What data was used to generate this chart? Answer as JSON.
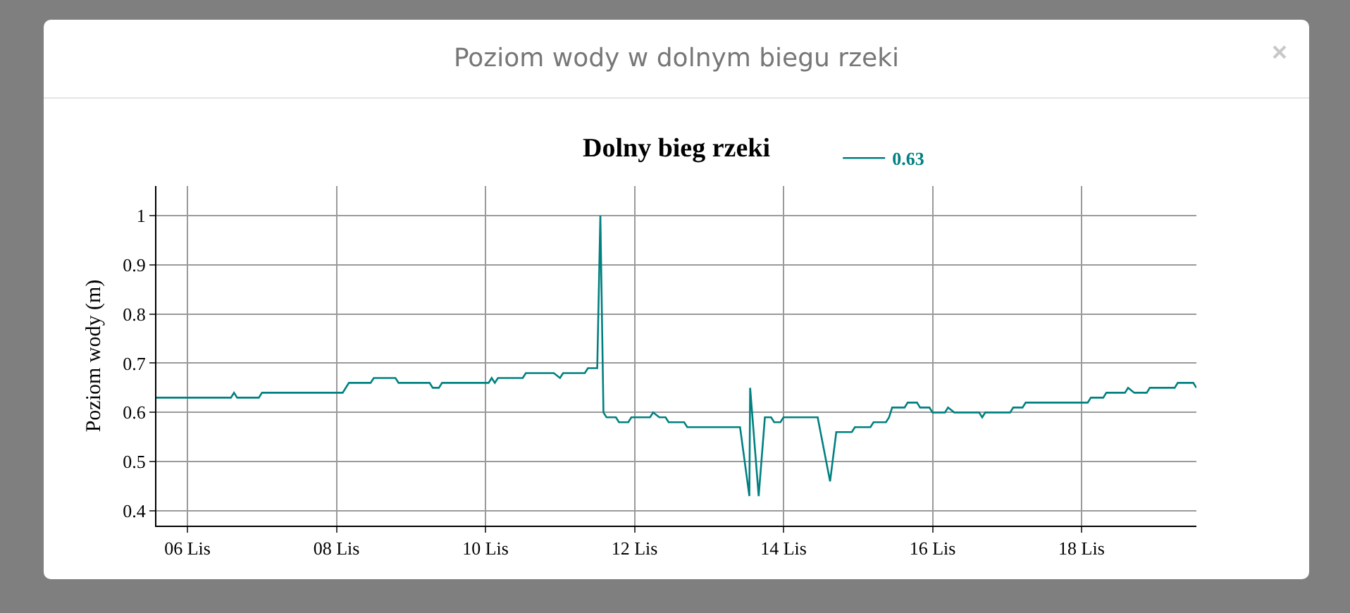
{
  "chart_data": {
    "type": "line",
    "title": "Poziom wody w dolnym biegu rzeki",
    "subtitle": "Dolny bieg rzeki",
    "ylabel": "Poziom wody (m)",
    "x": [
      "--11-05T14:00",
      "--11-06T14:00",
      "--11-06T15:00",
      "--11-06T16:00",
      "--11-06T23:00",
      "--11-07T00:00",
      "--11-08T02:00",
      "--11-08T04:00",
      "--11-08T11:00",
      "--11-08T12:00",
      "--11-08T19:00",
      "--11-08T20:00",
      "--11-09T06:00",
      "--11-09T07:00",
      "--11-09T09:00",
      "--11-09T10:00",
      "--11-10T01:00",
      "--11-10T02:00",
      "--11-10T03:00",
      "--11-10T04:00",
      "--11-10T12:00",
      "--11-10T13:00",
      "--11-10T22:00",
      "--11-11T00:00",
      "--11-11T01:00",
      "--11-11T08:00",
      "--11-11T09:00",
      "--11-11T12:00",
      "--11-11T13:00",
      "--11-11T14:00",
      "--11-11T15:00",
      "--11-11T18:00",
      "--11-11T19:00",
      "--11-11T22:00",
      "--11-11T23:00",
      "--11-12T05:00",
      "--11-12T06:00",
      "--11-12T08:00",
      "--11-12T10:00",
      "--11-12T11:00",
      "--11-12T16:00",
      "--11-12T17:00",
      "--11-13T10:00",
      "--11-13T13:00",
      "--11-13T13:15",
      "--11-13T16:00",
      "--11-13T18:00",
      "--11-13T20:00",
      "--11-13T21:00",
      "--11-13T23:00",
      "--11-14T00:00",
      "--11-14T11:00",
      "--11-14T15:00",
      "--11-14T17:00",
      "--11-14T22:00",
      "--11-14T23:00",
      "--11-15T04:00",
      "--11-15T05:00",
      "--11-15T09:00",
      "--11-15T10:00",
      "--11-15T11:00",
      "--11-15T15:00",
      "--11-15T16:00",
      "--11-15T19:00",
      "--11-15T20:00",
      "--11-15T23:00",
      "--11-16T00:00",
      "--11-16T04:00",
      "--11-16T05:00",
      "--11-16T07:00",
      "--11-16T15:00",
      "--11-16T16:00",
      "--11-16T17:00",
      "--11-17T01:00",
      "--11-17T02:00",
      "--11-17T05:00",
      "--11-17T06:00",
      "--11-17T10:00",
      "--11-18T02:00",
      "--11-18T03:00",
      "--11-18T07:00",
      "--11-18T08:00",
      "--11-18T14:00",
      "--11-18T15:00",
      "--11-18T17:00",
      "--11-18T21:00",
      "--11-18T22:00",
      "--11-19T06:00",
      "--11-19T07:00",
      "--11-19T12:00",
      "--11-19T13:00"
    ],
    "series": [
      {
        "name": "0.63",
        "color": "#008080",
        "values": [
          0.63,
          0.63,
          0.64,
          0.63,
          0.63,
          0.64,
          0.64,
          0.66,
          0.66,
          0.67,
          0.67,
          0.66,
          0.66,
          0.65,
          0.65,
          0.66,
          0.66,
          0.67,
          0.66,
          0.67,
          0.67,
          0.68,
          0.68,
          0.67,
          0.68,
          0.68,
          0.69,
          0.69,
          1.0,
          0.6,
          0.59,
          0.59,
          0.58,
          0.58,
          0.59,
          0.59,
          0.6,
          0.59,
          0.59,
          0.58,
          0.58,
          0.57,
          0.57,
          0.43,
          0.65,
          0.43,
          0.59,
          0.59,
          0.58,
          0.58,
          0.59,
          0.59,
          0.46,
          0.56,
          0.56,
          0.57,
          0.57,
          0.58,
          0.58,
          0.59,
          0.61,
          0.61,
          0.62,
          0.62,
          0.61,
          0.61,
          0.6,
          0.6,
          0.61,
          0.6,
          0.6,
          0.59,
          0.6,
          0.6,
          0.61,
          0.61,
          0.62,
          0.62,
          0.62,
          0.63,
          0.63,
          0.64,
          0.64,
          0.65,
          0.64,
          0.64,
          0.65,
          0.65,
          0.66,
          0.66,
          0.65
        ]
      }
    ],
    "xlim": [
      "--11-05T14:00",
      "--11-19T13:00"
    ],
    "xticks": [
      {
        "value": "--11-06",
        "label": "06 Lis"
      },
      {
        "value": "--11-08",
        "label": "08 Lis"
      },
      {
        "value": "--11-10",
        "label": "10 Lis"
      },
      {
        "value": "--11-12",
        "label": "12 Lis"
      },
      {
        "value": "--11-14",
        "label": "14 Lis"
      },
      {
        "value": "--11-16",
        "label": "16 Lis"
      },
      {
        "value": "--11-18",
        "label": "18 Lis"
      }
    ],
    "ylim": [
      0.37,
      1.06
    ],
    "yticks": [
      0.4,
      0.5,
      0.6,
      0.7,
      0.8,
      0.9,
      1
    ],
    "grid": true,
    "legend": "top",
    "marker": "none",
    "line_style": "solid"
  }
}
